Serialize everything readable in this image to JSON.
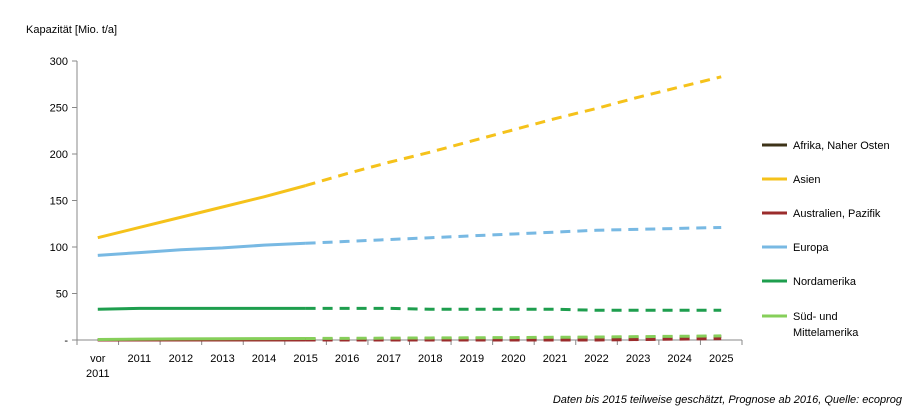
{
  "chart_data": {
    "type": "line",
    "ylabel": "Kapazität  [Mio. t/a]",
    "source": "Daten bis 2015 teilweise  geschätzt,  Prognose ab 2016, Quelle: ecoprog",
    "ylim": [
      0,
      300
    ],
    "yticks": [
      "-",
      "50",
      "100",
      "150",
      "200",
      "250",
      "300"
    ],
    "ytick_values": [
      0,
      50,
      100,
      150,
      200,
      250,
      300
    ],
    "categories": [
      [
        "vor",
        "2011"
      ],
      [
        "2011"
      ],
      [
        "2012"
      ],
      [
        "2013"
      ],
      [
        "2014"
      ],
      [
        "2015"
      ],
      [
        "2016"
      ],
      [
        "2017"
      ],
      [
        "2018"
      ],
      [
        "2019"
      ],
      [
        "2020"
      ],
      [
        "2021"
      ],
      [
        "2022"
      ],
      [
        "2023"
      ],
      [
        "2024"
      ],
      [
        "2025"
      ]
    ],
    "forecast_from_index": 5,
    "legend_position": "right",
    "grid": false,
    "series": [
      {
        "name": "Afrika, Naher Osten",
        "color": "#3d3318",
        "values": [
          0.3,
          0.5,
          0.6,
          0.7,
          0.8,
          0.9,
          1.1,
          1.3,
          1.5,
          1.7,
          2.0,
          2.3,
          2.7,
          3.0,
          3.4,
          3.8
        ]
      },
      {
        "name": "Asien",
        "color": "#f5c21b",
        "values": [
          110,
          121,
          132,
          143,
          154,
          166,
          179,
          191,
          202,
          214,
          226,
          238,
          249,
          261,
          272,
          283
        ]
      },
      {
        "name": "Australien, Pazifik",
        "color": "#9b2c2c",
        "values": [
          0,
          0,
          0,
          0,
          0,
          0,
          0,
          0,
          0,
          0,
          0,
          0,
          0,
          0.5,
          1,
          1.5
        ]
      },
      {
        "name": "Europa",
        "color": "#78b9e3",
        "values": [
          91,
          94,
          97,
          99,
          102,
          104,
          106,
          108,
          110,
          112,
          114,
          116,
          118,
          119,
          120,
          121
        ]
      },
      {
        "name": "Nordamerika",
        "color": "#1e9e4e",
        "values": [
          33,
          34,
          34,
          34,
          34,
          34,
          34,
          34,
          33,
          33,
          33,
          33,
          32,
          32,
          32,
          32
        ]
      },
      {
        "name": "Süd- und Mittelamerika",
        "name_lines": [
          "Süd- und",
          "Mittelamerika"
        ],
        "color": "#86cf5a",
        "values": [
          0.5,
          1,
          1.2,
          1.4,
          1.5,
          1.6,
          1.8,
          2.0,
          2.2,
          2.4,
          2.6,
          2.9,
          3.2,
          3.6,
          4.0,
          4.4
        ]
      }
    ]
  }
}
